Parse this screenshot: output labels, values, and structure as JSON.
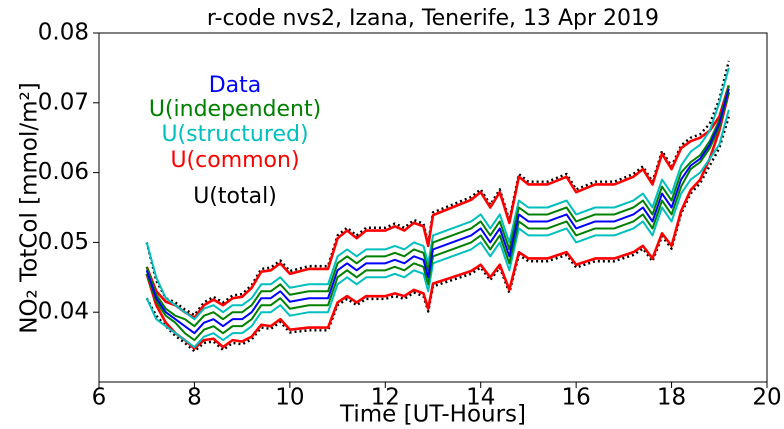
{
  "chart_data": {
    "type": "line",
    "title": "r-code nvs2, Izana, Tenerife, 13 Apr 2019",
    "xlabel": "Time [UT-Hours]",
    "ylabel": "NO₂ TotCol [mmol/m²]",
    "xlim": [
      6,
      20
    ],
    "xticks": [
      6,
      8,
      10,
      12,
      14,
      16,
      18,
      20
    ],
    "ylim": [
      0.03,
      0.08
    ],
    "yticks": [
      0.04,
      0.05,
      0.06,
      0.07,
      0.08
    ],
    "x": [
      7.0,
      7.2,
      7.4,
      7.6,
      7.8,
      8.0,
      8.2,
      8.4,
      8.6,
      8.8,
      9.0,
      9.2,
      9.4,
      9.6,
      9.8,
      10.0,
      10.4,
      10.8,
      11.0,
      11.2,
      11.4,
      11.6,
      12.0,
      12.2,
      12.4,
      12.6,
      12.8,
      12.9,
      13.0,
      13.4,
      13.8,
      14.0,
      14.2,
      14.4,
      14.6,
      14.8,
      15.0,
      15.4,
      15.8,
      16.0,
      16.4,
      16.8,
      17.2,
      17.4,
      17.6,
      17.8,
      18.0,
      18.2,
      18.4,
      18.6,
      18.8,
      19.0,
      19.2
    ],
    "series": [
      {
        "name": "Data",
        "color": "#0000ff",
        "values": [
          0.046,
          0.042,
          0.04,
          0.039,
          0.038,
          0.037,
          0.0385,
          0.039,
          0.038,
          0.039,
          0.039,
          0.04,
          0.042,
          0.042,
          0.043,
          0.0415,
          0.042,
          0.042,
          0.046,
          0.047,
          0.046,
          0.047,
          0.047,
          0.0475,
          0.047,
          0.048,
          0.0475,
          0.045,
          0.049,
          0.05,
          0.051,
          0.052,
          0.05,
          0.052,
          0.048,
          0.054,
          0.053,
          0.053,
          0.054,
          0.052,
          0.053,
          0.053,
          0.054,
          0.055,
          0.053,
          0.057,
          0.055,
          0.059,
          0.061,
          0.062,
          0.064,
          0.067,
          0.072
        ]
      },
      {
        "name": "U(independent)",
        "color": "#008000",
        "errors": [
          0.0005,
          0.0005,
          0.0005,
          0.0005,
          0.001,
          0.001,
          0.001,
          0.001,
          0.001,
          0.001,
          0.001,
          0.001,
          0.001,
          0.001,
          0.001,
          0.001,
          0.001,
          0.001,
          0.001,
          0.001,
          0.001,
          0.001,
          0.001,
          0.001,
          0.001,
          0.001,
          0.001,
          0.001,
          0.001,
          0.001,
          0.001,
          0.001,
          0.001,
          0.001,
          0.001,
          0.001,
          0.001,
          0.001,
          0.001,
          0.001,
          0.001,
          0.001,
          0.001,
          0.001,
          0.001,
          0.001,
          0.001,
          0.001,
          0.0005,
          0.0005,
          0.0005,
          0.0005,
          0.0005
        ]
      },
      {
        "name": "U(structured)",
        "color": "#00bfbf",
        "errors": [
          0.004,
          0.003,
          0.002,
          0.002,
          0.002,
          0.002,
          0.002,
          0.002,
          0.002,
          0.002,
          0.002,
          0.002,
          0.002,
          0.002,
          0.002,
          0.002,
          0.002,
          0.002,
          0.002,
          0.002,
          0.002,
          0.002,
          0.002,
          0.002,
          0.002,
          0.002,
          0.002,
          0.002,
          0.002,
          0.002,
          0.002,
          0.002,
          0.002,
          0.002,
          0.002,
          0.002,
          0.002,
          0.002,
          0.002,
          0.002,
          0.002,
          0.002,
          0.002,
          0.002,
          0.002,
          0.002,
          0.002,
          0.002,
          0.002,
          0.002,
          0.002,
          0.003,
          0.003
        ]
      },
      {
        "name": "U(common)",
        "color": "#ff0000",
        "errors": [
          0.0005,
          0.001,
          0.0015,
          0.002,
          0.002,
          0.0022,
          0.0025,
          0.0028,
          0.003,
          0.003,
          0.0032,
          0.0035,
          0.0038,
          0.004,
          0.004,
          0.004,
          0.0042,
          0.0042,
          0.0046,
          0.0047,
          0.0046,
          0.0047,
          0.0047,
          0.0048,
          0.0047,
          0.0048,
          0.0048,
          0.0045,
          0.0049,
          0.005,
          0.0051,
          0.0052,
          0.005,
          0.0052,
          0.0048,
          0.0054,
          0.0053,
          0.0053,
          0.0054,
          0.0052,
          0.0053,
          0.0053,
          0.0054,
          0.0055,
          0.0053,
          0.0057,
          0.0055,
          0.0045,
          0.0035,
          0.003,
          0.002,
          0.001,
          0.0005
        ]
      },
      {
        "name": "U(total)",
        "color": "#000000",
        "errors": [
          0.004,
          0.0025,
          0.002,
          0.0024,
          0.0024,
          0.0026,
          0.0029,
          0.0032,
          0.0034,
          0.0034,
          0.0036,
          0.0039,
          0.0042,
          0.0044,
          0.0044,
          0.0044,
          0.0046,
          0.0046,
          0.005,
          0.0051,
          0.005,
          0.0051,
          0.0051,
          0.0052,
          0.0051,
          0.0052,
          0.0052,
          0.0049,
          0.0053,
          0.0054,
          0.0055,
          0.0056,
          0.0054,
          0.0056,
          0.0052,
          0.0058,
          0.0057,
          0.0057,
          0.0058,
          0.0056,
          0.0057,
          0.0057,
          0.0058,
          0.0059,
          0.0057,
          0.0061,
          0.0059,
          0.0049,
          0.004,
          0.0035,
          0.003,
          0.0035,
          0.004
        ]
      }
    ]
  }
}
